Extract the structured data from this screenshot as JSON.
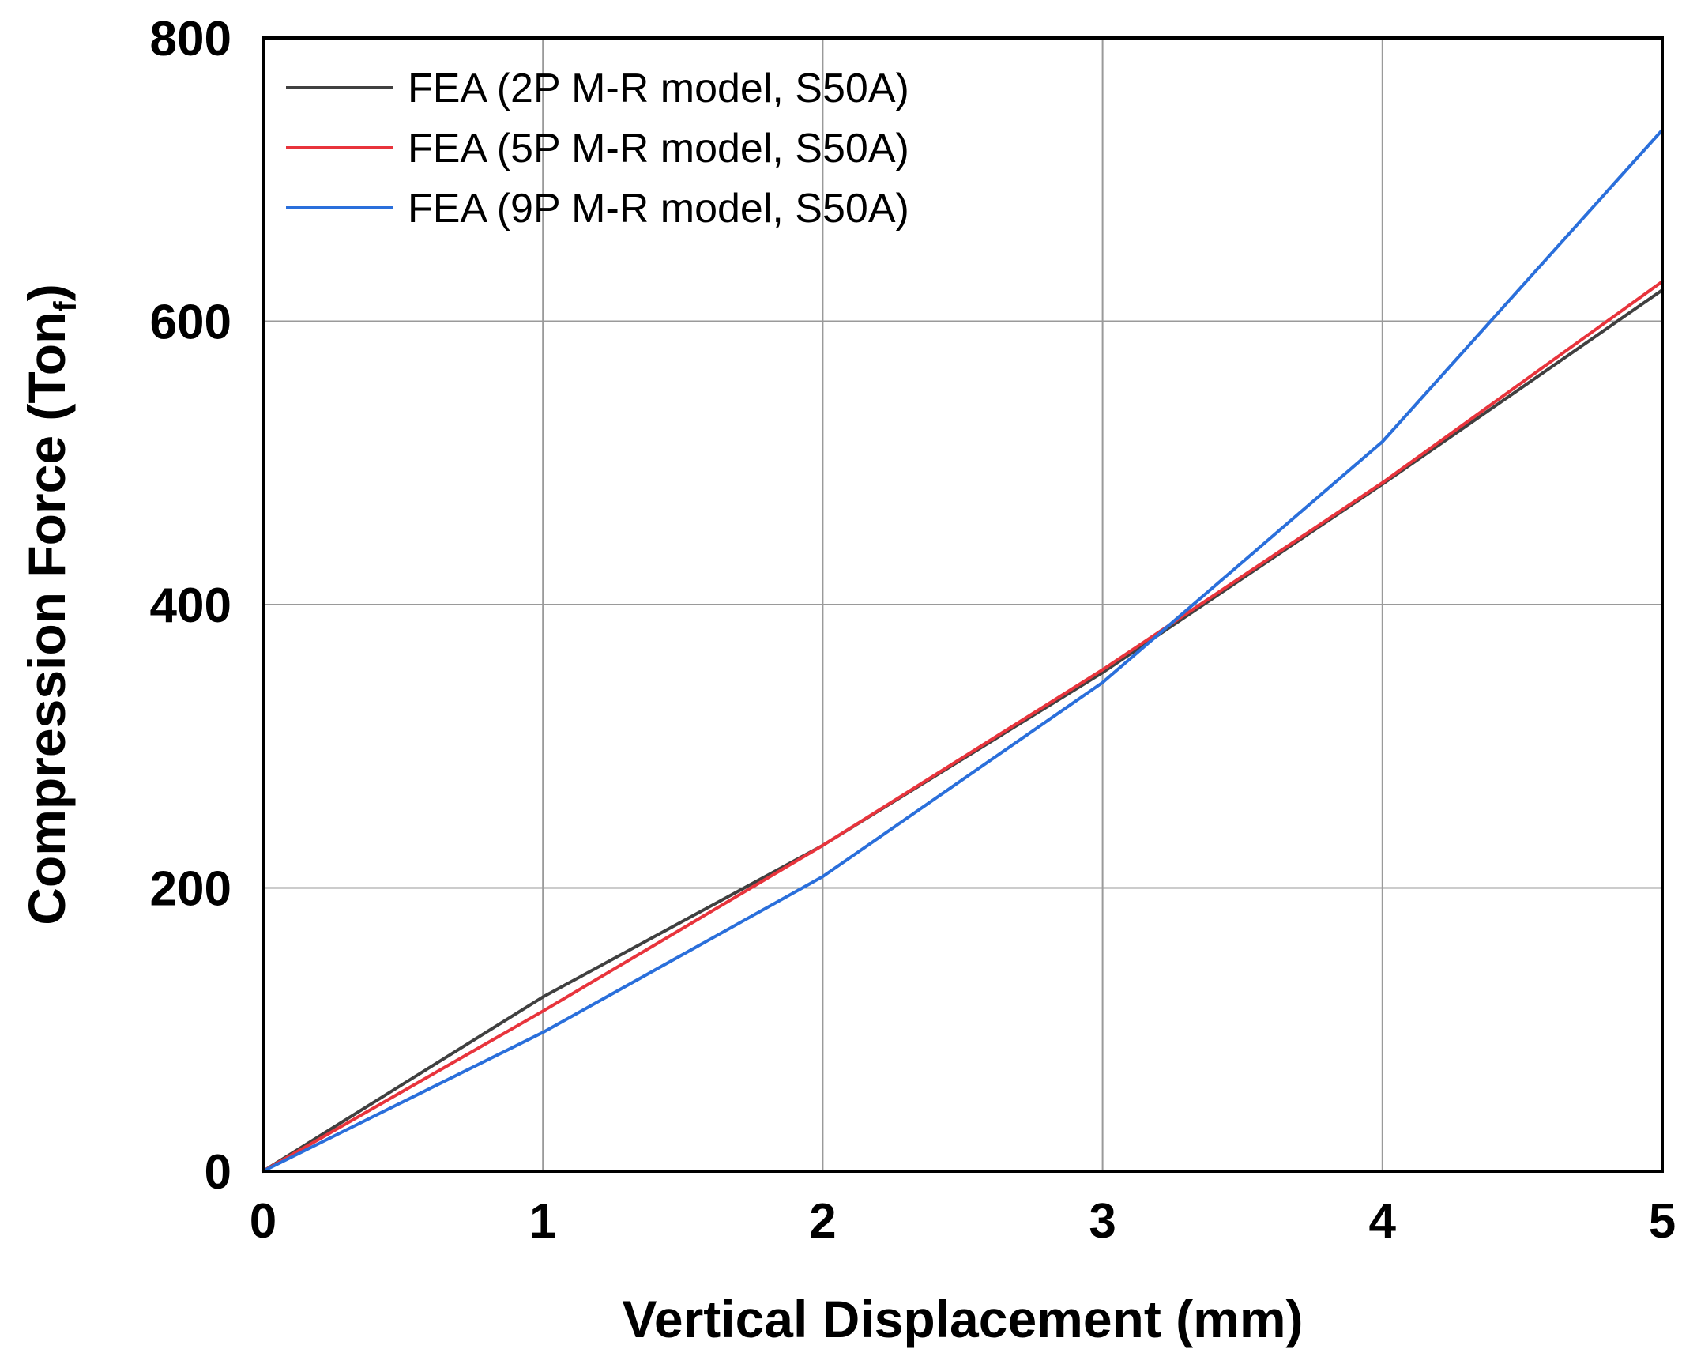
{
  "chart_data": {
    "type": "line",
    "title": "",
    "xlabel": "Vertical Displacement (mm)",
    "ylabel": "Compression Force (Ton",
    "ylabel_subscript": "f",
    "ylabel_close": ")",
    "xlim": [
      0,
      5
    ],
    "ylim": [
      0,
      800
    ],
    "xticks": [
      0,
      1,
      2,
      3,
      4,
      5
    ],
    "yticks": [
      0,
      200,
      400,
      600,
      800
    ],
    "grid": true,
    "legend_position": "top-left",
    "x": [
      0,
      1,
      2,
      3,
      4,
      5
    ],
    "series": [
      {
        "name": "FEA (2P M-R model, S50A)",
        "color": "#404040",
        "values": [
          0,
          123,
          230,
          352,
          485,
          622
        ]
      },
      {
        "name": "FEA (5P M-R model, S50A)",
        "color": "#e8343c",
        "values": [
          0,
          113,
          230,
          354,
          486,
          628
        ]
      },
      {
        "name": "FEA (9P M-R model, S50A)",
        "color": "#2a6fdb",
        "values": [
          0,
          98,
          208,
          345,
          515,
          735
        ]
      }
    ]
  }
}
